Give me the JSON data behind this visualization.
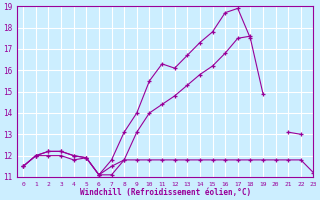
{
  "xlabel": "Windchill (Refroidissement éolien,°C)",
  "x_values": [
    0,
    1,
    2,
    3,
    4,
    5,
    6,
    7,
    8,
    9,
    10,
    11,
    12,
    13,
    14,
    15,
    16,
    17,
    18,
    19,
    20,
    21,
    22,
    23
  ],
  "line1": [
    11.5,
    12.0,
    12.0,
    12.0,
    11.8,
    11.9,
    11.1,
    11.5,
    11.8,
    11.8,
    11.8,
    11.8,
    11.8,
    11.8,
    11.8,
    11.8,
    11.8,
    11.8,
    11.8,
    11.8,
    11.8,
    11.8,
    11.8,
    11.2
  ],
  "line2": [
    11.5,
    12.0,
    12.2,
    12.2,
    12.0,
    11.9,
    11.1,
    11.8,
    13.1,
    14.0,
    15.5,
    16.3,
    16.1,
    16.7,
    17.3,
    17.8,
    18.7,
    18.9,
    17.5,
    14.9,
    null,
    13.1,
    13.0,
    null
  ],
  "line3": [
    11.5,
    12.0,
    12.2,
    12.2,
    12.0,
    11.9,
    11.1,
    11.1,
    11.8,
    13.1,
    14.0,
    14.4,
    14.8,
    15.3,
    15.8,
    16.2,
    16.8,
    17.5,
    17.6,
    null,
    null,
    null,
    null,
    null
  ],
  "line_color": "#990099",
  "bg_color": "#cceeff",
  "grid_color": "#ffffff",
  "ylim": [
    11,
    19
  ],
  "xlim": [
    -0.5,
    23
  ],
  "yticks": [
    11,
    12,
    13,
    14,
    15,
    16,
    17,
    18,
    19
  ],
  "xticks": [
    0,
    1,
    2,
    3,
    4,
    5,
    6,
    7,
    8,
    9,
    10,
    11,
    12,
    13,
    14,
    15,
    16,
    17,
    18,
    19,
    20,
    21,
    22,
    23
  ]
}
